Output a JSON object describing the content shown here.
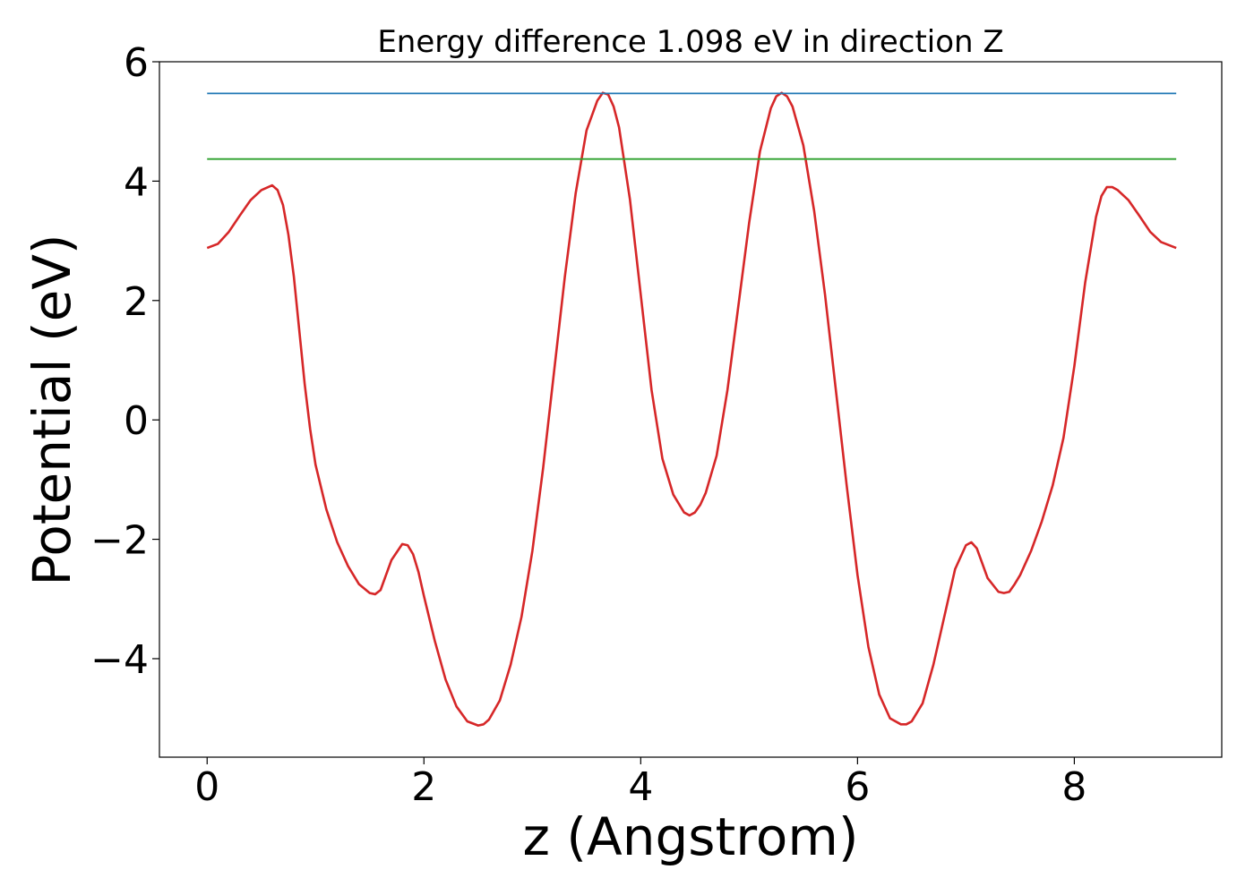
{
  "chart_data": {
    "type": "line",
    "title": "Energy difference 1.098 eV in direction Z",
    "xlabel": "z (Angstrom)",
    "ylabel": "Potential (eV)",
    "xlim": [
      -0.44,
      9.36
    ],
    "ylim": [
      -5.65,
      6.0
    ],
    "xticks": [
      0,
      2,
      4,
      6,
      8
    ],
    "xtick_labels": [
      "0",
      "2",
      "4",
      "6",
      "8"
    ],
    "yticks": [
      -4,
      -2,
      0,
      2,
      4,
      6
    ],
    "ytick_labels": [
      "−4",
      "−2",
      "0",
      "2",
      "4",
      "6"
    ],
    "grid": false,
    "legend": "none",
    "series": [
      {
        "color": "#d62728",
        "x": [
          0.0,
          0.1,
          0.2,
          0.3,
          0.4,
          0.5,
          0.6,
          0.65,
          0.7,
          0.75,
          0.8,
          0.85,
          0.9,
          0.95,
          1.0,
          1.1,
          1.2,
          1.3,
          1.4,
          1.5,
          1.55,
          1.6,
          1.65,
          1.7,
          1.8,
          1.85,
          1.9,
          1.95,
          2.0,
          2.1,
          2.2,
          2.3,
          2.4,
          2.5,
          2.55,
          2.6,
          2.7,
          2.8,
          2.9,
          3.0,
          3.1,
          3.2,
          3.3,
          3.4,
          3.5,
          3.6,
          3.65,
          3.7,
          3.75,
          3.8,
          3.9,
          4.0,
          4.1,
          4.2,
          4.3,
          4.4,
          4.45,
          4.5,
          4.55,
          4.6,
          4.7,
          4.8,
          4.9,
          5.0,
          5.1,
          5.2,
          5.25,
          5.3,
          5.35,
          5.4,
          5.5,
          5.6,
          5.7,
          5.8,
          5.9,
          6.0,
          6.1,
          6.2,
          6.3,
          6.4,
          6.45,
          6.5,
          6.6,
          6.7,
          6.8,
          6.9,
          7.0,
          7.05,
          7.1,
          7.15,
          7.2,
          7.3,
          7.35,
          7.4,
          7.45,
          7.5,
          7.6,
          7.7,
          7.8,
          7.9,
          8.0,
          8.1,
          8.2,
          8.25,
          8.3,
          8.35,
          8.4,
          8.5,
          8.6,
          8.7,
          8.8,
          8.94
        ],
        "y": [
          2.88,
          2.95,
          3.15,
          3.42,
          3.68,
          3.85,
          3.93,
          3.85,
          3.6,
          3.1,
          2.4,
          1.5,
          0.6,
          -0.15,
          -0.75,
          -1.5,
          -2.05,
          -2.45,
          -2.75,
          -2.9,
          -2.92,
          -2.85,
          -2.6,
          -2.35,
          -2.08,
          -2.1,
          -2.25,
          -2.55,
          -2.95,
          -3.7,
          -4.35,
          -4.8,
          -5.05,
          -5.12,
          -5.1,
          -5.02,
          -4.7,
          -4.1,
          -3.3,
          -2.2,
          -0.8,
          0.8,
          2.4,
          3.8,
          4.85,
          5.35,
          5.48,
          5.45,
          5.25,
          4.9,
          3.7,
          2.1,
          0.5,
          -0.65,
          -1.25,
          -1.55,
          -1.6,
          -1.55,
          -1.42,
          -1.22,
          -0.6,
          0.5,
          1.9,
          3.3,
          4.5,
          5.22,
          5.42,
          5.48,
          5.42,
          5.25,
          4.6,
          3.5,
          2.1,
          0.5,
          -1.1,
          -2.6,
          -3.8,
          -4.6,
          -5.0,
          -5.1,
          -5.1,
          -5.05,
          -4.75,
          -4.1,
          -3.3,
          -2.5,
          -2.1,
          -2.05,
          -2.15,
          -2.4,
          -2.65,
          -2.88,
          -2.9,
          -2.88,
          -2.75,
          -2.6,
          -2.2,
          -1.7,
          -1.1,
          -0.3,
          0.9,
          2.3,
          3.4,
          3.75,
          3.9,
          3.9,
          3.85,
          3.68,
          3.42,
          3.15,
          2.98,
          2.88
        ]
      },
      {
        "color": "#1f77b4",
        "x": [
          0.0,
          8.94
        ],
        "y": [
          5.47,
          5.47
        ]
      },
      {
        "color": "#2ca02c",
        "x": [
          0.0,
          8.94
        ],
        "y": [
          4.37,
          4.37
        ]
      }
    ]
  }
}
